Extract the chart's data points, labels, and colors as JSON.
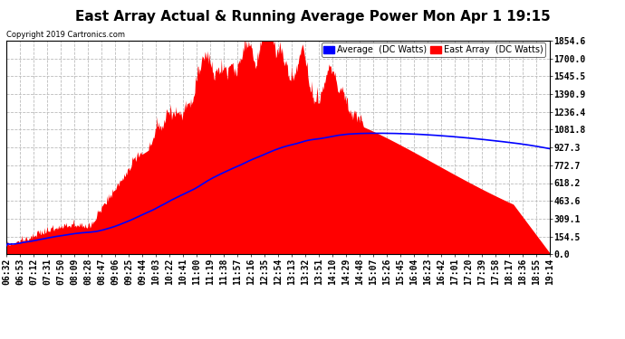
{
  "title": "East Array Actual & Running Average Power Mon Apr 1 19:15",
  "copyright": "Copyright 2019 Cartronics.com",
  "legend_labels": [
    "Average  (DC Watts)",
    "East Array  (DC Watts)"
  ],
  "legend_colors": [
    "#0000ff",
    "#ff0000"
  ],
  "yticks": [
    0.0,
    154.5,
    309.1,
    463.6,
    618.2,
    772.7,
    927.3,
    1081.8,
    1236.4,
    1390.9,
    1545.5,
    1700.0,
    1854.6
  ],
  "ymax": 1854.6,
  "ymin": 0.0,
  "xtick_labels": [
    "06:32",
    "06:53",
    "07:12",
    "07:31",
    "07:50",
    "08:09",
    "08:28",
    "08:47",
    "09:06",
    "09:25",
    "09:44",
    "10:03",
    "10:22",
    "10:41",
    "11:00",
    "11:19",
    "11:38",
    "11:57",
    "12:16",
    "12:35",
    "12:54",
    "13:13",
    "13:32",
    "13:51",
    "14:10",
    "14:29",
    "14:48",
    "15:07",
    "15:26",
    "15:45",
    "16:04",
    "16:23",
    "16:42",
    "17:01",
    "17:20",
    "17:39",
    "17:58",
    "18:17",
    "18:36",
    "18:55",
    "19:14"
  ],
  "bg_color": "#ffffff",
  "plot_bg_color": "#ffffff",
  "grid_color": "#bbbbbb",
  "fill_color": "#ff0000",
  "line_color": "#0000ff",
  "title_fontsize": 11,
  "axis_fontsize": 7
}
